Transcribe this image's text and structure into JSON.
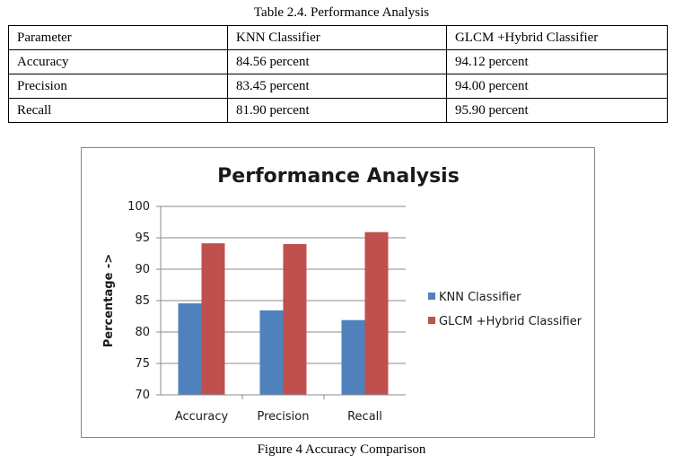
{
  "table": {
    "caption": "Table 2.4. Performance Analysis",
    "header": [
      "Parameter",
      "KNN Classifier",
      "GLCM +Hybrid  Classifier"
    ],
    "rows": [
      [
        "Accuracy",
        "84.56 percent",
        "94.12 percent"
      ],
      [
        "Precision",
        "83.45 percent",
        "94.00 percent"
      ],
      [
        "Recall",
        "81.90 percent",
        "95.90 percent"
      ]
    ]
  },
  "figure_caption": "Figure 4 Accuracy Comparison",
  "chart_data": {
    "type": "bar",
    "title": "Performance Analysis",
    "xlabel": "",
    "ylabel": "Percentage ->",
    "categories": [
      "Accuracy",
      "Precision",
      "Recall"
    ],
    "series": [
      {
        "name": "KNN Classifier",
        "values": [
          84.56,
          83.45,
          81.9
        ],
        "color": "#4f81bd"
      },
      {
        "name": "GLCM +Hybrid  Classifier",
        "values": [
          94.12,
          94.0,
          95.9
        ],
        "color": "#c0504d"
      }
    ],
    "ylim": [
      70,
      100
    ],
    "yticks": [
      70,
      75,
      80,
      85,
      90,
      95,
      100
    ],
    "grid": true,
    "legend": "right"
  }
}
